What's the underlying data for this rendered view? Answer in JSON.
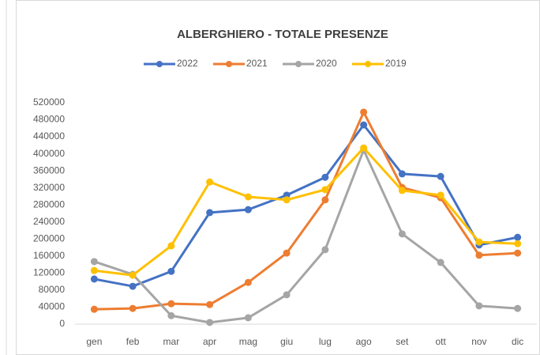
{
  "chart_data": {
    "type": "line",
    "title": "ALBERGHIERO - TOTALE PRESENZE",
    "categories": [
      "gen",
      "feb",
      "mar",
      "apr",
      "mag",
      "giu",
      "lug",
      "ago",
      "set",
      "ott",
      "nov",
      "dic"
    ],
    "series": [
      {
        "name": "2022",
        "color": "#4472c4",
        "values": [
          106000,
          89000,
          124000,
          262000,
          269000,
          303000,
          345000,
          468000,
          353000,
          347000,
          186000,
          204000
        ]
      },
      {
        "name": "2021",
        "color": "#ed7d31",
        "values": [
          35000,
          37000,
          48000,
          46000,
          98000,
          167000,
          292000,
          498000,
          321000,
          297000,
          162000,
          167000
        ]
      },
      {
        "name": "2020",
        "color": "#a5a5a5",
        "values": [
          147000,
          117000,
          20000,
          4000,
          15000,
          69000,
          175000,
          409000,
          212000,
          145000,
          43000,
          37000
        ]
      },
      {
        "name": "2019",
        "color": "#ffc000",
        "values": [
          126000,
          115000,
          184000,
          334000,
          299000,
          292000,
          316000,
          414000,
          314000,
          303000,
          193000,
          189000
        ]
      }
    ],
    "ylim": [
      0,
      520000
    ],
    "yticks": [
      0,
      40000,
      80000,
      120000,
      160000,
      200000,
      240000,
      280000,
      320000,
      360000,
      400000,
      440000,
      480000,
      520000
    ],
    "grid": false,
    "legend": "top"
  }
}
